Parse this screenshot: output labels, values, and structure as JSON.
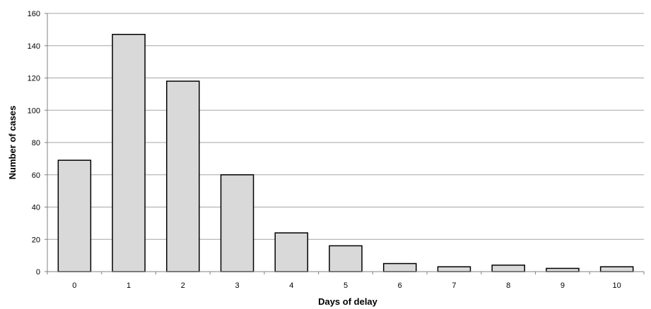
{
  "chart_data": {
    "type": "bar",
    "title": "",
    "xlabel": "Days of delay",
    "ylabel": "Number of cases",
    "categories": [
      "0",
      "1",
      "2",
      "3",
      "4",
      "5",
      "6",
      "7",
      "8",
      "9",
      "10"
    ],
    "values": [
      69,
      147,
      118,
      60,
      24,
      16,
      5,
      3,
      4,
      2,
      3
    ],
    "ylim": [
      0,
      160
    ],
    "yticks": [
      "0",
      "20",
      "40",
      "60",
      "80",
      "100",
      "120",
      "140",
      "160"
    ],
    "grid": "horizontal",
    "legend": "none",
    "colors": {
      "bar_fill": "#d9d9d9",
      "bar_stroke": "#000000",
      "grid": "#a6a6a6",
      "axis": "#808080"
    }
  }
}
